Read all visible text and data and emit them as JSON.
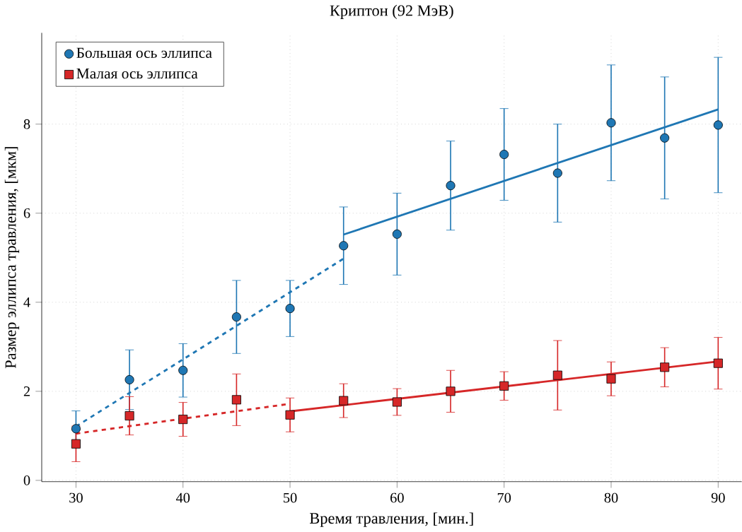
{
  "chart_data": {
    "type": "scatter",
    "title": "Криптон (92 МэВ)",
    "xlabel": "Время травления, [мин.]",
    "ylabel": "Размер эллипса травления, [мкм]",
    "x": [
      30,
      35,
      40,
      45,
      50,
      55,
      60,
      65,
      70,
      75,
      80,
      85,
      90
    ],
    "series": [
      {
        "name": "Большая ось эллипса",
        "color": "#1f77b4",
        "marker": "circle",
        "values": [
          1.16,
          2.26,
          2.47,
          3.67,
          3.86,
          5.27,
          5.53,
          6.62,
          7.32,
          6.9,
          8.03,
          7.69,
          7.98
        ],
        "errors": [
          0.4,
          0.67,
          0.6,
          0.82,
          0.63,
          0.87,
          0.92,
          1.0,
          1.03,
          1.1,
          1.3,
          1.37,
          1.52
        ]
      },
      {
        "name": "Малая ось эллипса",
        "color": "#d62728",
        "marker": "square",
        "values": [
          0.82,
          1.45,
          1.37,
          1.81,
          1.47,
          1.79,
          1.76,
          2.0,
          2.12,
          2.36,
          2.28,
          2.54,
          2.63
        ],
        "errors": [
          0.4,
          0.43,
          0.38,
          0.58,
          0.38,
          0.38,
          0.3,
          0.47,
          0.32,
          0.78,
          0.38,
          0.44,
          0.58
        ]
      },
      {
        "type": "line",
        "color": "#1f77b4",
        "line_style": "dashed",
        "marker": "none",
        "x": [
          30,
          55
        ],
        "values": [
          1.21,
          4.98
        ]
      },
      {
        "type": "line",
        "color": "#1f77b4",
        "line_style": "solid",
        "marker": "none",
        "x": [
          55,
          90
        ],
        "values": [
          5.52,
          8.33
        ]
      },
      {
        "type": "line",
        "color": "#d62728",
        "line_style": "dashed",
        "marker": "none",
        "x": [
          30,
          50
        ],
        "values": [
          1.05,
          1.72
        ]
      },
      {
        "type": "line",
        "color": "#d62728",
        "line_style": "solid",
        "marker": "none",
        "x": [
          50,
          90
        ],
        "values": [
          1.55,
          2.67
        ]
      }
    ],
    "xlim": [
      26.8,
      92.2
    ],
    "ylim": [
      -0.03,
      10.05
    ],
    "xticks": [
      30,
      40,
      50,
      60,
      70,
      80,
      90
    ],
    "yticks": [
      0,
      2,
      4,
      6,
      8
    ],
    "grid": true,
    "legend": "top left"
  }
}
